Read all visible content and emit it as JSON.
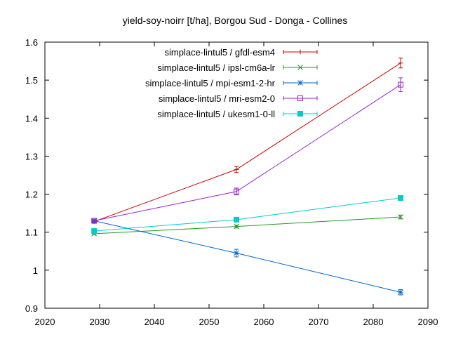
{
  "chart_data": {
    "type": "line",
    "title": "yield-soy-noirr [t/ha], Borgou Sud - Donga - Collines",
    "xlabel": "",
    "ylabel": "",
    "xlim": [
      2020,
      2090
    ],
    "ylim": [
      0.9,
      1.6
    ],
    "xticks": [
      "2020",
      "2030",
      "2040",
      "2050",
      "2060",
      "2070",
      "2080",
      "2090"
    ],
    "yticks": [
      "0.9",
      "1",
      "1.1",
      "1.2",
      "1.3",
      "1.4",
      "1.5",
      "1.6"
    ],
    "grid": false,
    "legend_position": "top-right",
    "x": [
      2029,
      2055,
      2085
    ],
    "series": [
      {
        "name": "simplace-lintul5 / gfdl-esm4",
        "color": "#cc0000",
        "marker": "plus",
        "values": [
          1.128,
          1.265,
          1.545
        ],
        "errors": [
          0.003,
          0.008,
          0.013
        ]
      },
      {
        "name": "simplace-lintul5 / ipsl-cm6a-lr",
        "color": "#229922",
        "marker": "cross",
        "values": [
          1.096,
          1.115,
          1.14
        ],
        "errors": [
          0.002,
          0.004,
          0.005
        ]
      },
      {
        "name": "simplace-lintul5 / mpi-esm1-2-hr",
        "color": "#0066cc",
        "marker": "star",
        "values": [
          1.13,
          1.045,
          0.942
        ],
        "errors": [
          0.003,
          0.01,
          0.007
        ]
      },
      {
        "name": "simplace-lintul5 / mri-esm2-0",
        "color": "#9922cc",
        "marker": "square",
        "values": [
          1.13,
          1.207,
          1.488
        ],
        "errors": [
          0.003,
          0.009,
          0.018
        ]
      },
      {
        "name": "simplace-lintul5 / ukesm1-0-ll",
        "color": "#00cccc",
        "marker": "filled-square",
        "values": [
          1.103,
          1.133,
          1.19
        ],
        "errors": [
          0.002,
          0.004,
          0.004
        ]
      }
    ]
  }
}
